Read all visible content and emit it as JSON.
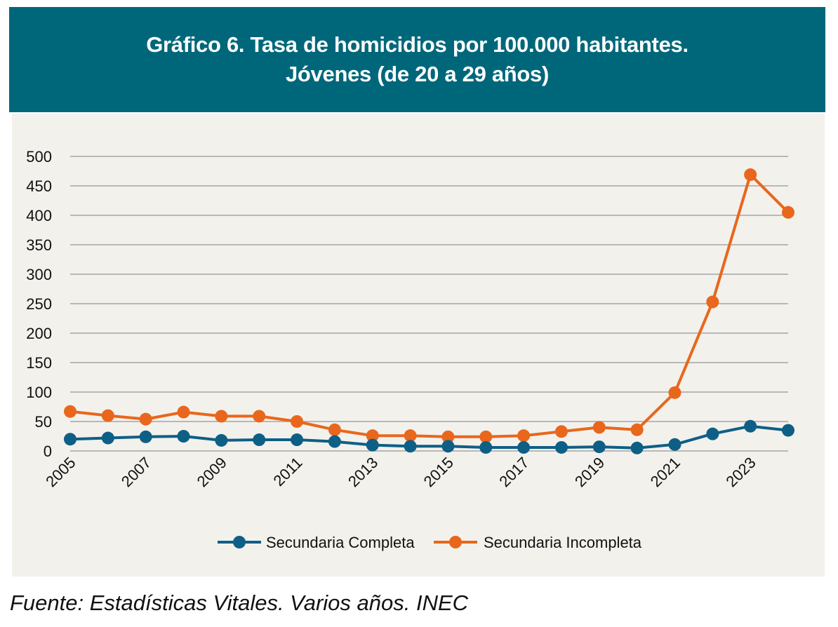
{
  "header": {
    "title_line1": "Gráfico 6. Tasa de homicidios por 100.000 habitantes.",
    "title_line2": "Jóvenes (de 20 a 29 años)"
  },
  "source": "Fuente: Estadísticas Vitales. Varios años. INEC",
  "colors": {
    "header_bg": "#00677a",
    "panel_bg": "#f3f1ec",
    "series_completa": "#0e5f86",
    "series_incompleta": "#e8671c",
    "grid": "#a6a6a6"
  },
  "chart_data": {
    "type": "line",
    "title": "Gráfico 6. Tasa de homicidios por 100.000 habitantes. Jóvenes (de 20 a 29 años)",
    "xlabel": "",
    "ylabel": "",
    "ylim": [
      0,
      500
    ],
    "yticks": [
      0,
      50,
      100,
      150,
      200,
      250,
      300,
      350,
      400,
      450,
      500
    ],
    "x": [
      2005,
      2006,
      2007,
      2008,
      2009,
      2010,
      2011,
      2012,
      2013,
      2014,
      2015,
      2016,
      2017,
      2018,
      2019,
      2020,
      2021,
      2022,
      2023,
      2024
    ],
    "xtick_labels": [
      "2005",
      "2007",
      "2009",
      "2011",
      "2013",
      "2015",
      "2017",
      "2019",
      "2021",
      "2023"
    ],
    "grid": true,
    "legend_position": "bottom",
    "series": [
      {
        "name": "Secundaria Completa",
        "values": [
          20,
          22,
          24,
          25,
          18,
          19,
          19,
          16,
          10,
          8,
          8,
          6,
          6,
          6,
          7,
          5,
          11,
          29,
          42,
          35
        ]
      },
      {
        "name": "Secundaria Incompleta",
        "values": [
          67,
          60,
          54,
          66,
          59,
          59,
          50,
          36,
          26,
          26,
          24,
          24,
          26,
          33,
          40,
          36,
          99,
          253,
          469,
          405
        ]
      }
    ]
  }
}
